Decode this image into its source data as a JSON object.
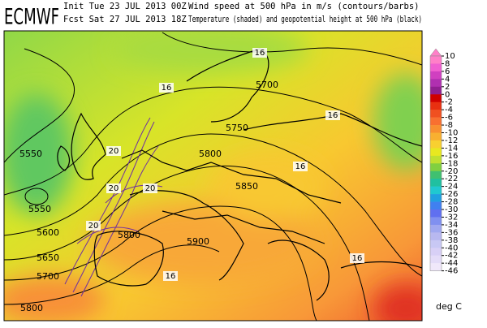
{
  "header": {
    "logo": "ECMWF",
    "init": "Init  Tue 23 JUL 2013 00Z",
    "forecast": "Fcst Sat 27 JUL 2013 18Z",
    "title_wind": "Wind speed at 500 hPa in m/s (contours/barbs)",
    "title_temp": "Temperature (shaded) and geopotential height at 500 hPa (black)"
  },
  "legend": {
    "ticks": [
      10,
      8,
      6,
      4,
      2,
      0,
      -2,
      -4,
      -6,
      -8,
      -10,
      -12,
      -14,
      -16,
      -18,
      -20,
      -22,
      -24,
      -26,
      -28,
      -30,
      -32,
      -34,
      -36,
      -38,
      -40,
      -42,
      -44,
      -46
    ],
    "colors": [
      "#ff80c8",
      "#f060d0",
      "#d040c0",
      "#b030b0",
      "#902090",
      "#d00000",
      "#e83010",
      "#f05020",
      "#f87030",
      "#f89030",
      "#f8b030",
      "#f8d030",
      "#e8e820",
      "#c0e030",
      "#80d040",
      "#40c070",
      "#20c0a0",
      "#20c8d0",
      "#20a0e0",
      "#4080f0",
      "#6070f0",
      "#8090f0",
      "#a0a8f0",
      "#b8b8f0",
      "#c8c8f4",
      "#d8d0f6",
      "#e4dcf8",
      "#f0e8fa"
    ],
    "unit": "deg C"
  },
  "map": {
    "height_labels": [
      5550,
      5550,
      5600,
      5650,
      5700,
      5800,
      5700,
      5750,
      5800,
      5850,
      5900,
      5800
    ],
    "wind_labels": [
      16,
      16,
      16,
      20,
      20,
      20,
      20,
      16,
      16,
      16
    ]
  }
}
